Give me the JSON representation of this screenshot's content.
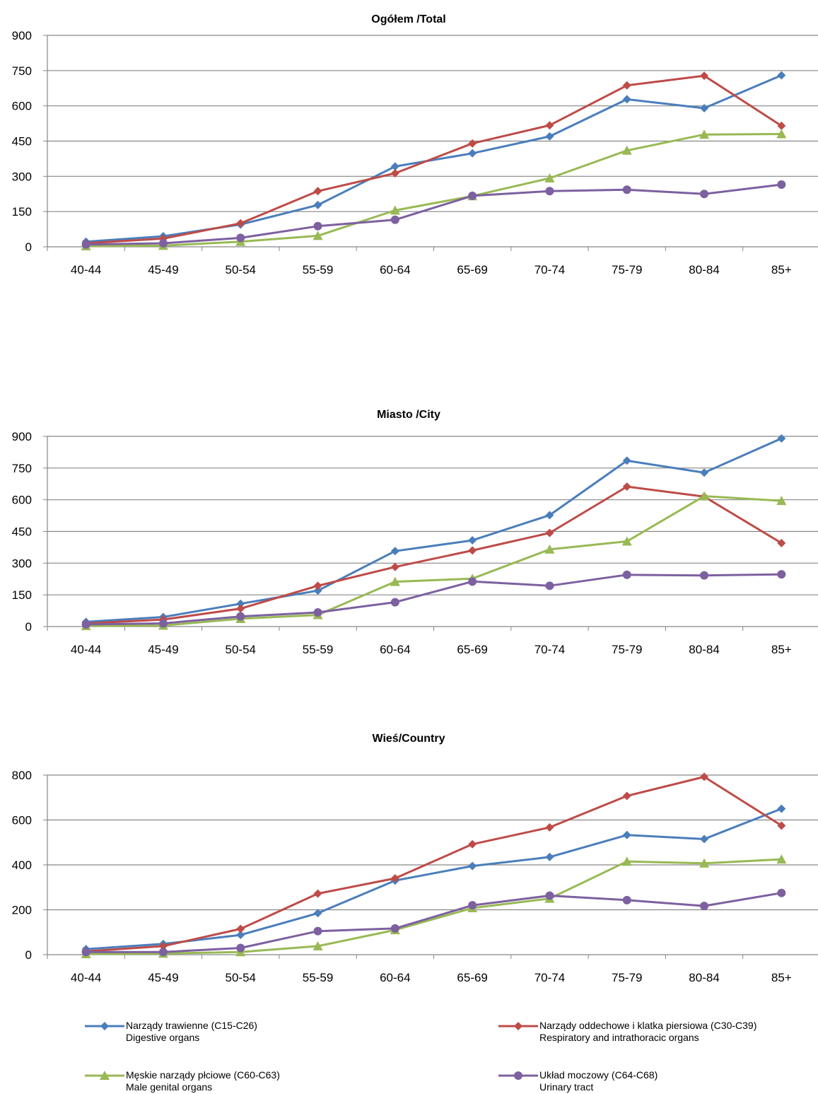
{
  "colors": {
    "series": [
      "#4A7EBB",
      "#BE4B48",
      "#98B954",
      "#7D60A0"
    ],
    "grid": "#868686",
    "axis": "#868686"
  },
  "chart_data": [
    {
      "type": "line",
      "title": "Ogółem /Total",
      "categories": [
        "40-44",
        "45-49",
        "50-54",
        "55-59",
        "60-64",
        "65-69",
        "70-74",
        "75-79",
        "80-84",
        "85+"
      ],
      "ylim": [
        0,
        900
      ],
      "yticks": [
        0,
        150,
        300,
        450,
        600,
        750,
        900
      ],
      "grid": true,
      "series": [
        {
          "name": "Narządy trawienne (C15-C26)",
          "marker": "diamond",
          "values": [
            22,
            45,
            95,
            178,
            342,
            398,
            470,
            628,
            590,
            730
          ]
        },
        {
          "name": "Narządy oddechowe i klatka piersiowa (C30-C39)",
          "marker": "diamond",
          "values": [
            15,
            35,
            100,
            237,
            313,
            440,
            517,
            687,
            728,
            515
          ]
        },
        {
          "name": "Męskie narządy płciowe (C60-C63)",
          "marker": "triangle",
          "values": [
            3,
            5,
            22,
            47,
            155,
            216,
            292,
            410,
            478,
            480
          ]
        },
        {
          "name": "Układ moczowy (C64-C68)",
          "marker": "circle",
          "values": [
            10,
            15,
            38,
            88,
            115,
            217,
            237,
            243,
            225,
            265
          ]
        }
      ]
    },
    {
      "type": "line",
      "title": "Miasto /City",
      "categories": [
        "40-44",
        "45-49",
        "50-54",
        "55-59",
        "60-64",
        "65-69",
        "70-74",
        "75-79",
        "80-84",
        "85+"
      ],
      "ylim": [
        0,
        900
      ],
      "yticks": [
        0,
        150,
        300,
        450,
        600,
        750,
        900
      ],
      "grid": true,
      "series": [
        {
          "name": "Narządy trawienne (C15-C26)",
          "marker": "diamond",
          "values": [
            22,
            45,
            108,
            170,
            357,
            408,
            527,
            785,
            728,
            890
          ]
        },
        {
          "name": "Narządy oddechowe i klatka piersiowa (C30-C39)",
          "marker": "diamond",
          "values": [
            15,
            33,
            85,
            193,
            282,
            360,
            443,
            662,
            615,
            395
          ]
        },
        {
          "name": "Męskie narządy płciowe (C60-C63)",
          "marker": "triangle",
          "values": [
            3,
            5,
            37,
            55,
            212,
            227,
            365,
            403,
            617,
            595
          ]
        },
        {
          "name": "Układ moczowy (C64-C68)",
          "marker": "circle",
          "values": [
            10,
            15,
            48,
            67,
            115,
            213,
            193,
            245,
            242,
            247
          ]
        }
      ]
    },
    {
      "type": "line",
      "title": "Wieś/Country",
      "categories": [
        "40-44",
        "45-49",
        "50-54",
        "55-59",
        "60-64",
        "65-69",
        "70-74",
        "75-79",
        "80-84",
        "85+"
      ],
      "ylim": [
        0,
        800
      ],
      "yticks": [
        0,
        200,
        400,
        600,
        800
      ],
      "grid": true,
      "series": [
        {
          "name": "Narządy trawienne (C15-C26)",
          "marker": "diamond",
          "values": [
            25,
            48,
            88,
            185,
            330,
            395,
            435,
            533,
            515,
            650
          ]
        },
        {
          "name": "Narządy oddechowe i klatka piersiowa (C30-C39)",
          "marker": "diamond",
          "values": [
            15,
            38,
            115,
            272,
            340,
            492,
            567,
            707,
            792,
            575
          ]
        },
        {
          "name": "Męskie narządy płciowe (C60-C63)",
          "marker": "triangle",
          "values": [
            3,
            5,
            12,
            38,
            110,
            208,
            250,
            415,
            407,
            425
          ]
        },
        {
          "name": "Układ moczowy (C64-C68)",
          "marker": "circle",
          "values": [
            12,
            12,
            30,
            105,
            117,
            220,
            263,
            243,
            217,
            275
          ]
        }
      ]
    }
  ],
  "legend": [
    {
      "pl": "Narządy trawienne (C15-C26)",
      "en": "Digestive organs"
    },
    {
      "pl": "Narządy oddechowe i klatka piersiowa (C30-C39)",
      "en": "Respiratory and intrathoracic organs"
    },
    {
      "pl": "Męskie narządy płciowe (C60-C63)",
      "en": "Male genital organs"
    },
    {
      "pl": "Układ moczowy (C64-C68)",
      "en": "Urinary tract"
    }
  ]
}
